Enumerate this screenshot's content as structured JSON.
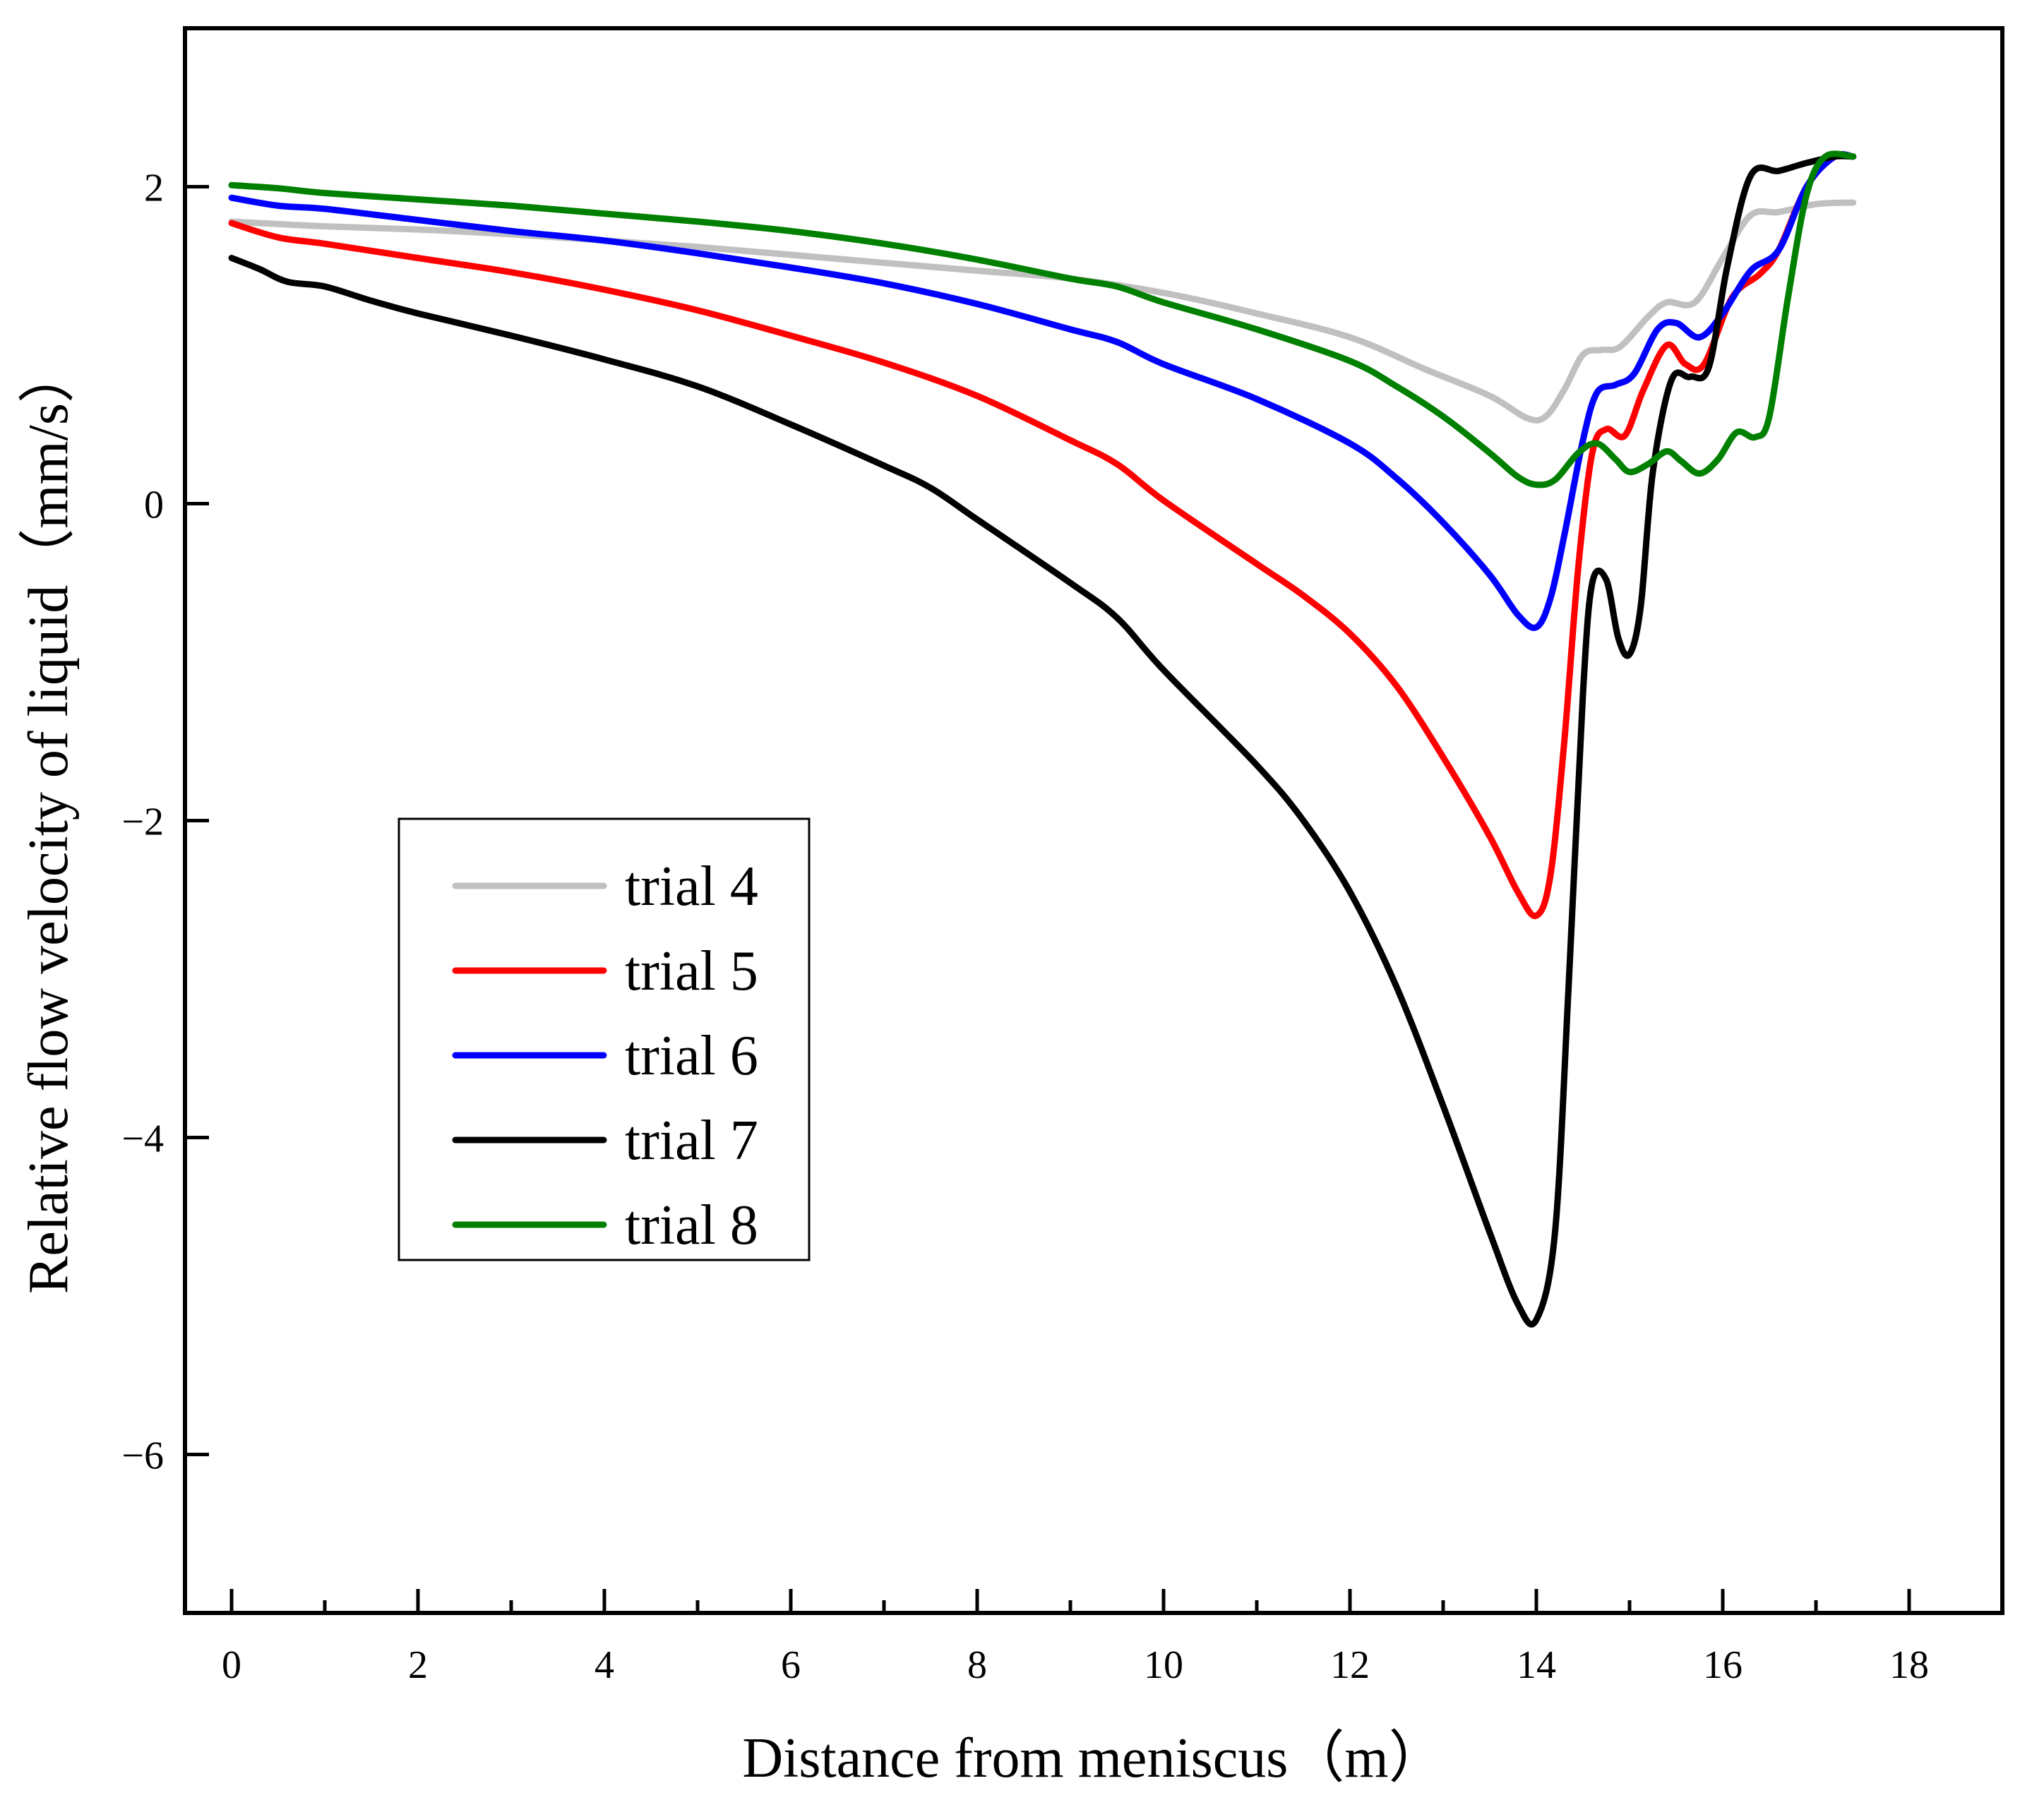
{
  "chart_data": {
    "type": "line",
    "title": "",
    "xlabel": "Distance from meniscus（m）",
    "ylabel": "Relative flow velocity of liquid（mm/s）",
    "xlim": [
      -0.5,
      19.0
    ],
    "ylim": [
      -7.0,
      3.0
    ],
    "xticks": [
      0,
      2,
      4,
      6,
      8,
      10,
      12,
      14,
      16,
      18
    ],
    "yticks": [
      -6,
      -4,
      -2,
      0,
      2
    ],
    "xtick_labels": [
      "0",
      "2",
      "4",
      "6",
      "8",
      "10",
      "12",
      "14",
      "16",
      "18"
    ],
    "ytick_labels": [
      "−6",
      "−4",
      "−2",
      "0",
      "2"
    ],
    "grid": false,
    "legend_position": "left-center",
    "series": [
      {
        "name": "trial 4",
        "color": "#c0c0c0",
        "points": [
          [
            0,
            1.78
          ],
          [
            1,
            1.75
          ],
          [
            2,
            1.73
          ],
          [
            3,
            1.7
          ],
          [
            4,
            1.66
          ],
          [
            5,
            1.62
          ],
          [
            6,
            1.57
          ],
          [
            7,
            1.52
          ],
          [
            8,
            1.47
          ],
          [
            9,
            1.42
          ],
          [
            10,
            1.33
          ],
          [
            11,
            1.2
          ],
          [
            12,
            1.05
          ],
          [
            12.8,
            0.85
          ],
          [
            13.5,
            0.68
          ],
          [
            13.9,
            0.54
          ],
          [
            14.1,
            0.55
          ],
          [
            14.3,
            0.72
          ],
          [
            14.5,
            0.94
          ],
          [
            14.7,
            0.97
          ],
          [
            14.9,
            0.99
          ],
          [
            15.2,
            1.18
          ],
          [
            15.4,
            1.27
          ],
          [
            15.7,
            1.27
          ],
          [
            16.0,
            1.55
          ],
          [
            16.3,
            1.82
          ],
          [
            16.6,
            1.84
          ],
          [
            17.0,
            1.89
          ],
          [
            17.4,
            1.9
          ]
        ]
      },
      {
        "name": "trial 5",
        "color": "#ff0000",
        "points": [
          [
            0,
            1.77
          ],
          [
            0.5,
            1.68
          ],
          [
            1,
            1.64
          ],
          [
            2,
            1.55
          ],
          [
            3,
            1.46
          ],
          [
            4,
            1.35
          ],
          [
            5,
            1.22
          ],
          [
            6,
            1.06
          ],
          [
            7,
            0.89
          ],
          [
            8,
            0.68
          ],
          [
            9,
            0.4
          ],
          [
            9.5,
            0.25
          ],
          [
            10,
            0.02
          ],
          [
            11,
            -0.38
          ],
          [
            11.5,
            -0.58
          ],
          [
            12,
            -0.82
          ],
          [
            12.5,
            -1.15
          ],
          [
            13,
            -1.6
          ],
          [
            13.5,
            -2.1
          ],
          [
            13.8,
            -2.45
          ],
          [
            14.0,
            -2.6
          ],
          [
            14.15,
            -2.35
          ],
          [
            14.3,
            -1.5
          ],
          [
            14.45,
            -0.4
          ],
          [
            14.6,
            0.32
          ],
          [
            14.75,
            0.47
          ],
          [
            14.95,
            0.43
          ],
          [
            15.15,
            0.72
          ],
          [
            15.4,
            1.0
          ],
          [
            15.6,
            0.88
          ],
          [
            15.8,
            0.88
          ],
          [
            16.1,
            1.3
          ],
          [
            16.4,
            1.45
          ],
          [
            16.6,
            1.6
          ],
          [
            16.9,
            2.0
          ],
          [
            17.2,
            2.19
          ],
          [
            17.4,
            2.19
          ]
        ]
      },
      {
        "name": "trial 6",
        "color": "#0000ff",
        "points": [
          [
            0,
            1.93
          ],
          [
            0.5,
            1.88
          ],
          [
            1,
            1.86
          ],
          [
            2,
            1.79
          ],
          [
            3,
            1.72
          ],
          [
            4,
            1.66
          ],
          [
            5,
            1.58
          ],
          [
            6,
            1.49
          ],
          [
            7,
            1.39
          ],
          [
            8,
            1.26
          ],
          [
            9,
            1.1
          ],
          [
            9.5,
            1.02
          ],
          [
            10,
            0.88
          ],
          [
            11,
            0.66
          ],
          [
            12,
            0.38
          ],
          [
            12.5,
            0.16
          ],
          [
            13,
            -0.12
          ],
          [
            13.5,
            -0.45
          ],
          [
            13.8,
            -0.7
          ],
          [
            14.0,
            -0.78
          ],
          [
            14.15,
            -0.6
          ],
          [
            14.3,
            -0.2
          ],
          [
            14.5,
            0.4
          ],
          [
            14.65,
            0.7
          ],
          [
            14.85,
            0.75
          ],
          [
            15.05,
            0.82
          ],
          [
            15.3,
            1.1
          ],
          [
            15.5,
            1.14
          ],
          [
            15.75,
            1.05
          ],
          [
            16.0,
            1.2
          ],
          [
            16.3,
            1.47
          ],
          [
            16.6,
            1.6
          ],
          [
            16.9,
            2.0
          ],
          [
            17.2,
            2.19
          ],
          [
            17.4,
            2.19
          ]
        ]
      },
      {
        "name": "trial 7",
        "color": "#000000",
        "points": [
          [
            0,
            1.55
          ],
          [
            0.3,
            1.48
          ],
          [
            0.6,
            1.4
          ],
          [
            1,
            1.37
          ],
          [
            1.5,
            1.28
          ],
          [
            2,
            1.2
          ],
          [
            3,
            1.06
          ],
          [
            4,
            0.91
          ],
          [
            5,
            0.74
          ],
          [
            6,
            0.5
          ],
          [
            7,
            0.24
          ],
          [
            7.5,
            0.1
          ],
          [
            8,
            -0.1
          ],
          [
            9,
            -0.5
          ],
          [
            9.5,
            -0.72
          ],
          [
            10,
            -1.05
          ],
          [
            11,
            -1.65
          ],
          [
            11.5,
            -2.0
          ],
          [
            12,
            -2.45
          ],
          [
            12.5,
            -3.05
          ],
          [
            13,
            -3.8
          ],
          [
            13.5,
            -4.6
          ],
          [
            13.8,
            -5.05
          ],
          [
            14.0,
            -5.15
          ],
          [
            14.2,
            -4.6
          ],
          [
            14.35,
            -3.0
          ],
          [
            14.5,
            -1.2
          ],
          [
            14.6,
            -0.5
          ],
          [
            14.75,
            -0.48
          ],
          [
            14.88,
            -0.85
          ],
          [
            15.0,
            -0.95
          ],
          [
            15.12,
            -0.65
          ],
          [
            15.25,
            0.2
          ],
          [
            15.45,
            0.78
          ],
          [
            15.65,
            0.8
          ],
          [
            15.85,
            0.86
          ],
          [
            16.05,
            1.5
          ],
          [
            16.3,
            2.07
          ],
          [
            16.6,
            2.1
          ],
          [
            16.9,
            2.15
          ],
          [
            17.2,
            2.19
          ],
          [
            17.4,
            2.19
          ]
        ]
      },
      {
        "name": "trial 8",
        "color": "#008000",
        "points": [
          [
            0,
            2.01
          ],
          [
            0.5,
            1.99
          ],
          [
            1,
            1.96
          ],
          [
            2,
            1.92
          ],
          [
            3,
            1.88
          ],
          [
            4,
            1.83
          ],
          [
            5,
            1.78
          ],
          [
            6,
            1.72
          ],
          [
            7,
            1.64
          ],
          [
            8,
            1.54
          ],
          [
            9,
            1.42
          ],
          [
            9.5,
            1.37
          ],
          [
            10,
            1.27
          ],
          [
            11,
            1.1
          ],
          [
            12,
            0.9
          ],
          [
            12.5,
            0.74
          ],
          [
            13,
            0.55
          ],
          [
            13.5,
            0.32
          ],
          [
            13.8,
            0.17
          ],
          [
            14.0,
            0.12
          ],
          [
            14.2,
            0.15
          ],
          [
            14.45,
            0.32
          ],
          [
            14.65,
            0.38
          ],
          [
            14.85,
            0.28
          ],
          [
            15.0,
            0.2
          ],
          [
            15.2,
            0.25
          ],
          [
            15.4,
            0.33
          ],
          [
            15.55,
            0.27
          ],
          [
            15.75,
            0.19
          ],
          [
            15.95,
            0.28
          ],
          [
            16.15,
            0.45
          ],
          [
            16.35,
            0.42
          ],
          [
            16.5,
            0.55
          ],
          [
            16.7,
            1.3
          ],
          [
            16.9,
            1.95
          ],
          [
            17.1,
            2.19
          ],
          [
            17.4,
            2.19
          ]
        ]
      }
    ]
  }
}
